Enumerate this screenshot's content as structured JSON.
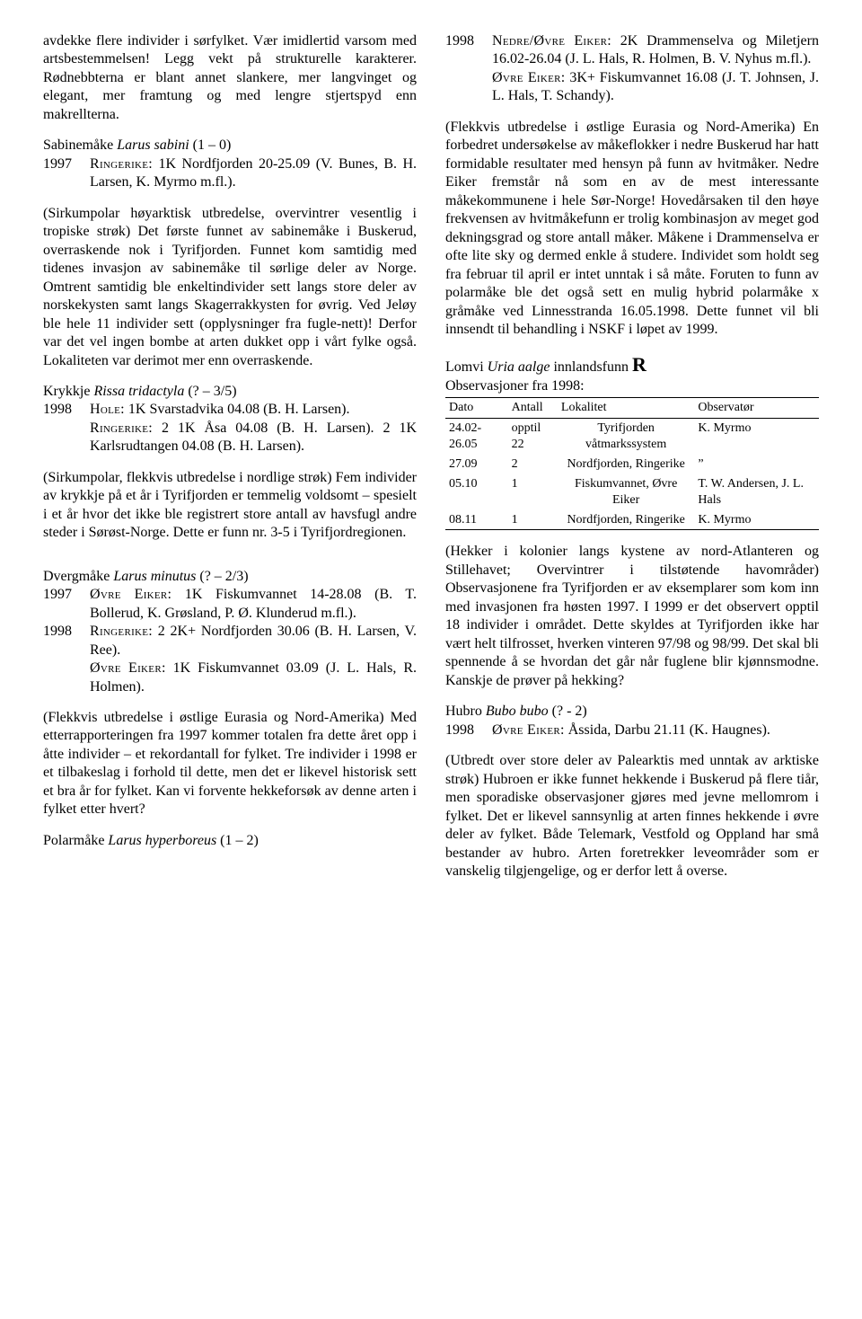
{
  "col1": {
    "p0": "avdekke flere individer i sørfylket. Vær imidlertid varsom med artsbestemmelsen! Legg vekt på strukturelle karakterer. Rødnebbterna er blant annet slankere, mer langvinget og elegant, mer framtung og med lengre stjertspyd enn makrellterna.",
    "sabine_head_pre": "Sabinemåke ",
    "sabine_head_it": "Larus sabini",
    "sabine_head_post": " (1 – 0)",
    "sabine_obs_year": "1997",
    "sabine_obs_sc": "Ringerike:",
    "sabine_obs_rest": " 1K Nordfjorden 20-25.09 (V. Bunes, B. H. Larsen, K. Myrmo m.fl.).",
    "sabine_note": "(Sirkumpolar høyarktisk utbredelse, overvintrer vesentlig i tropiske strøk) Det første funnet av sabinemåke i Buskerud, overraskende nok i Tyrifjorden. Funnet kom samtidig med tidenes invasjon av sabinemåke til sørlige deler av Norge. Omtrent samtidig ble enkeltindivider sett langs store deler av norskekysten samt langs Skagerrakkysten for øvrig. Ved Jeløy ble hele 11 individer sett (opplysninger fra fugle-nett)! Derfor var det vel ingen bombe at arten dukket opp i vårt fylke også. Lokaliteten var derimot mer enn overraskende.",
    "krykkje_head_pre": "Krykkje ",
    "krykkje_head_it": "Rissa tridactyla",
    "krykkje_head_post": " (? – 3/5)",
    "krykkje_obs_year": "1998",
    "krykkje_obs_sc": "Hole:",
    "krykkje_obs_rest": " 1K Svarstadvika 04.08 (B. H. Larsen).",
    "krykkje_obs2_sc": "Ringerike:",
    "krykkje_obs2_rest": " 2 1K Åsa 04.08 (B. H. Larsen). 2 1K Karlsrudtangen 04.08 (B. H. Larsen).",
    "krykkje_note": "(Sirkumpolar, flekkvis utbredelse i nordlige strøk) Fem individer av krykkje på et år i Tyrifjorden er temmelig voldsomt – spesielt i et år hvor det ikke ble registrert store antall av havsfugl andre steder i Sørøst-Norge. Dette er funn nr. 3-5 i Tyrifjordregionen.",
    "dverg_head_pre": "Dvergmåke ",
    "dverg_head_it": "Larus minutus",
    "dverg_head_post": " (? – 2/3)",
    "dverg_obs_year1": "1997",
    "dverg_obs1_sc": "Øvre Eiker:",
    "dverg_obs1_rest": " 1K Fiskumvannet 14-28.08 (B. T. Bollerud, K. Grøsland, P. Ø. Klunderud m.fl.).",
    "dverg_obs_year2": "1998",
    "dverg_obs2_sc": "Ringerike:",
    "dverg_obs2_rest": " 2 2K+ Nordfjorden 30.06 (B. H. Larsen, V. Ree).",
    "dverg_obs3_sc": "Øvre Eiker:",
    "dverg_obs3_rest": " 1K Fiskumvannet 03.09 (J. L. Hals, R. Holmen).",
    "dverg_note": "(Flekkvis utbredelse i østlige Eurasia og Nord-Amerika) Med etterrapporteringen fra 1997 kommer totalen fra dette året opp i åtte individer – et rekordantall for fylket. Tre individer i 1998 er et tilbakeslag i forhold til dette, men det er likevel historisk sett et bra år for fylket. Kan vi forvente hekkeforsøk av denne arten i fylket etter hvert?",
    "polar_head_pre": "Polarmåke ",
    "polar_head_it": "Larus hyperboreus",
    "polar_head_post": " (1 – 2)"
  },
  "col2": {
    "polar_obs_year": "1998",
    "polar_obs_sc": "Nedre/Øvre Eiker:",
    "polar_obs_rest": " 2K Drammenselva og Miletjern 16.02-26.04 (J. L. Hals, R. Holmen, B. V. Nyhus m.fl.).",
    "polar_obs2_sc": "Øvre Eiker:",
    "polar_obs2_rest": " 3K+ Fiskumvannet 16.08 (J. T. Johnsen, J. L. Hals, T. Schandy).",
    "polar_note": "(Flekkvis utbredelse i østlige Eurasia og Nord-Amerika) En forbedret undersøkelse av måkeflokker i nedre Buskerud har hatt formidable resultater med hensyn på funn av hvitmåker. Nedre Eiker fremstår nå som en av de mest interessante måkekommunene i hele Sør-Norge! Hovedårsaken til den høye frekvensen av hvitmåkefunn er trolig kombinasjon av meget god dekningsgrad og store antall måker. Måkene i Drammenselva er ofte lite sky og dermed enkle å studere. Individet som holdt seg fra februar til april er intet unntak i så måte. Foruten to funn av polarmåke ble det også sett en mulig hybrid polarmåke x gråmåke ved Linnesstranda 16.05.1998. Dette funnet vil bli innsendt til behandling i NSKF i løpet av 1999.",
    "lomvi_head_pre": "Lomvi ",
    "lomvi_head_it": "Uria aalge",
    "lomvi_head_post": " innlandsfunn ",
    "lomvi_obsline": "Observasjoner fra 1998:",
    "table": {
      "headers": [
        "Dato",
        "Antall",
        "Lokalitet",
        "Observatør"
      ],
      "rows": [
        [
          "24.02-26.05",
          "opptil 22",
          "Tyrifjorden våtmarkssystem",
          "K. Myrmo"
        ],
        [
          "27.09",
          "2",
          "Nordfjorden, Ringerike",
          "”"
        ],
        [
          "05.10",
          "1",
          "Fiskumvannet, Øvre Eiker",
          "T. W. Andersen, J. L. Hals"
        ],
        [
          "08.11",
          "1",
          "Nordfjorden, Ringerike",
          "K. Myrmo"
        ]
      ]
    },
    "lomvi_note": "(Hekker i kolonier langs kystene av nord-Atlanteren og Stillehavet; Overvintrer i tilstøtende havområder) Observasjonene fra Tyrifjorden er av eksemplarer som kom inn med invasjonen fra høsten 1997. I 1999 er det observert opptil 18 individer i området. Dette skyldes at Tyrifjorden ikke har vært helt tilfrosset, hverken vinteren 97/98 og 98/99. Det skal bli spennende å se hvordan det går når fuglene blir kjønnsmodne. Kanskje de prøver på hekking?",
    "hubro_head_pre": "Hubro ",
    "hubro_head_it": "Bubo bubo",
    "hubro_head_post": " (? - 2)",
    "hubro_obs_year": "1998",
    "hubro_obs_sc": "Øvre Eiker:",
    "hubro_obs_rest": " Åssida, Darbu 21.11 (K. Haugnes).",
    "hubro_note": "(Utbredt over store deler av Palearktis med unntak av arktiske strøk) Hubroen er ikke funnet hekkende i Buskerud på flere tiår, men sporadiske observasjoner gjøres med jevne mellomrom i fylket. Det er likevel sannsynlig at arten finnes hekkende i øvre deler av fylket. Både Telemark, Vestfold og Oppland har små bestander av hubro. Arten foretrekker leveområder som er vanskelig tilgjengelige, og er derfor lett å overse."
  }
}
